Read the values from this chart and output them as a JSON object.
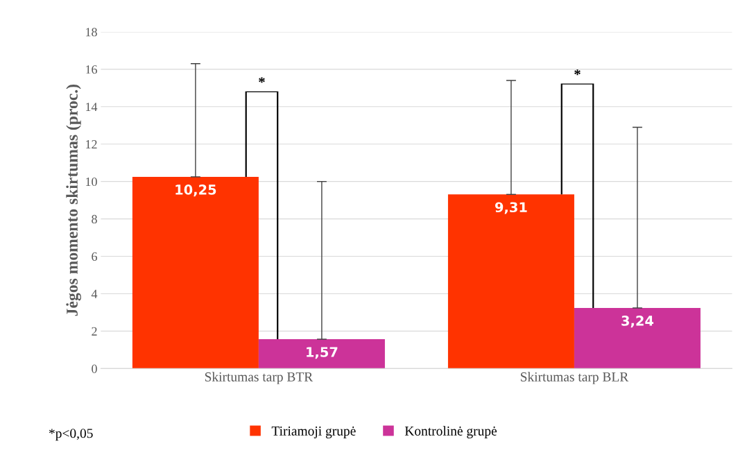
{
  "chart_data": {
    "type": "bar",
    "ylabel": "Jėgos momento skirtumas (proc.)",
    "categories": [
      "Skirtumas tarp BTR",
      "Skirtumas tarp BLR"
    ],
    "series": [
      {
        "name": "Tiriamoji grupė",
        "color": "#ff3300",
        "values": [
          10.25,
          9.31
        ],
        "value_labels": [
          "10,25",
          "9,31"
        ],
        "errors": [
          [
            10.25,
            16.3
          ],
          [
            9.31,
            15.4
          ]
        ]
      },
      {
        "name": "Kontrolinė grupė",
        "color": "#cc3399",
        "values": [
          1.57,
          3.24
        ],
        "value_labels": [
          "1,57",
          "3,24"
        ],
        "errors": [
          [
            1.57,
            10.0
          ],
          [
            3.24,
            12.9
          ]
        ]
      }
    ],
    "ylim": [
      0,
      18
    ],
    "yticks": [
      0,
      2,
      4,
      6,
      8,
      10,
      12,
      14,
      16,
      18
    ],
    "grid": "y",
    "legend": "bottom",
    "annotations": [
      "*",
      "*",
      "*p<0,05"
    ]
  }
}
